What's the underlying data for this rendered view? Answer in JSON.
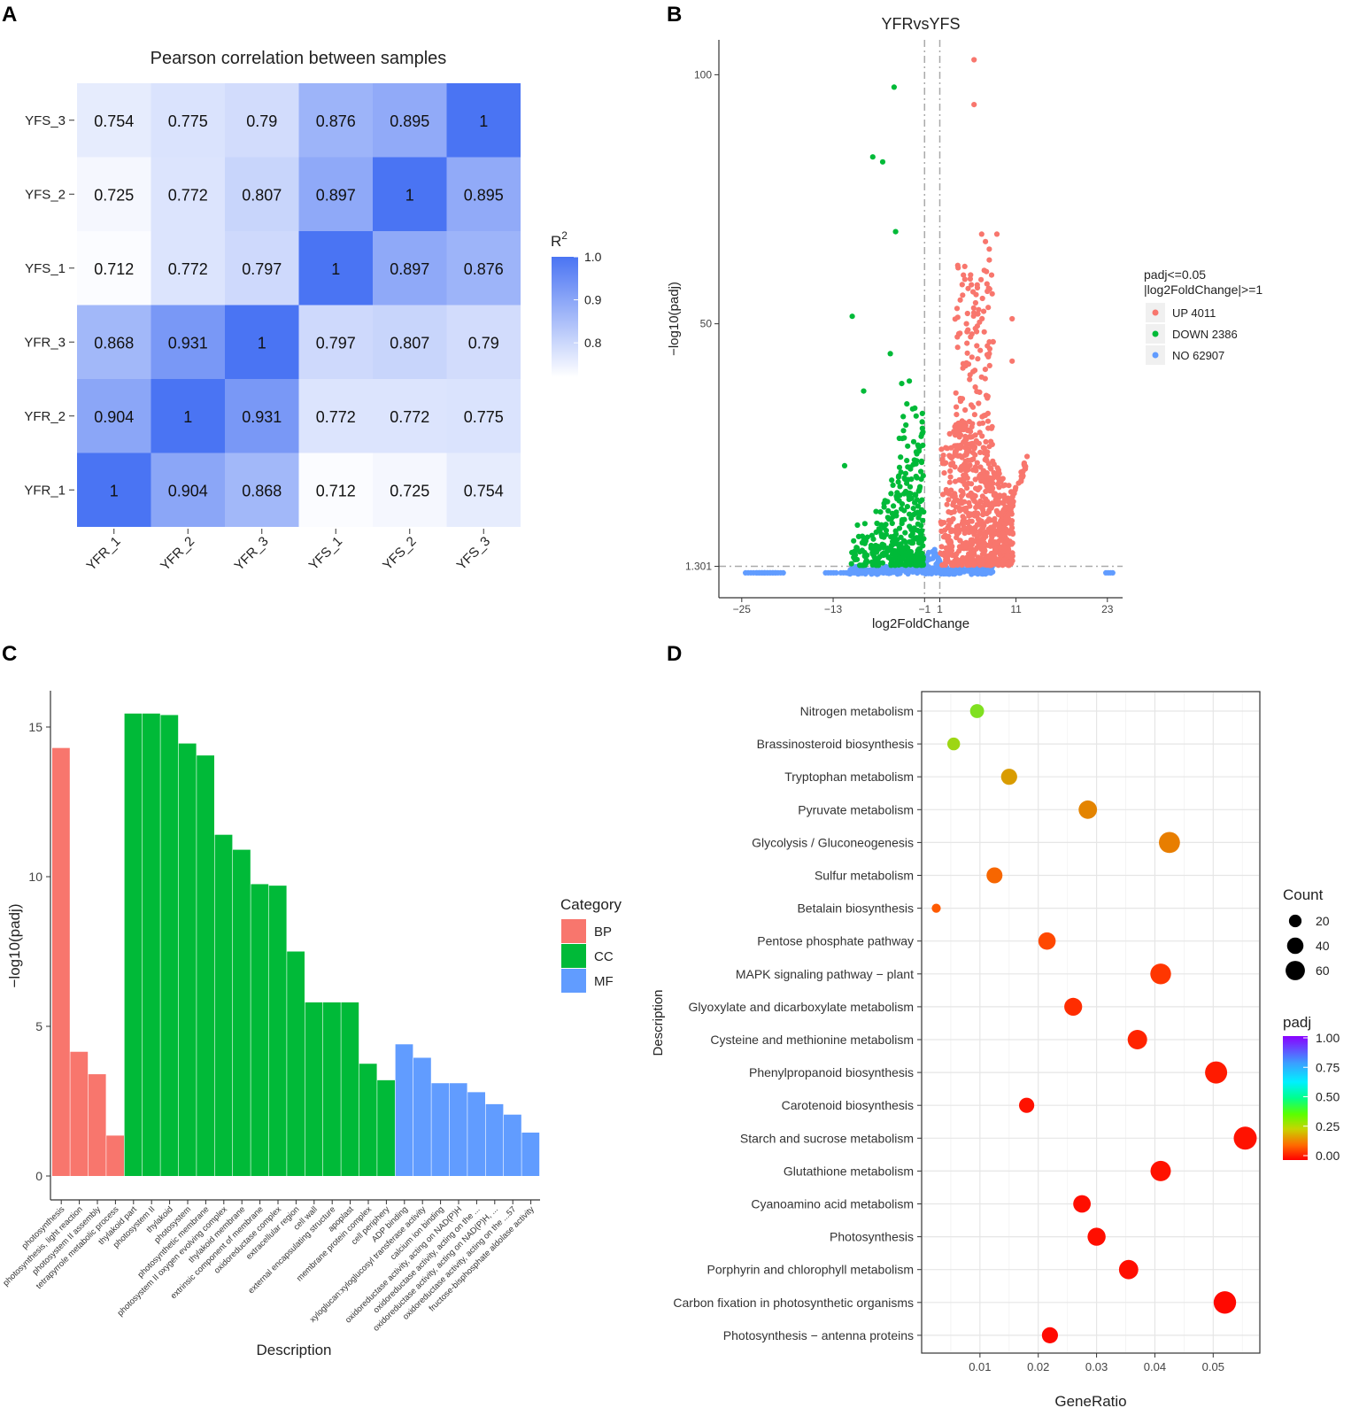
{
  "panels": {
    "a": "A",
    "b": "B",
    "c": "C",
    "d": "D"
  },
  "chart_data": [
    {
      "type": "heatmap",
      "title": "Pearson correlation between samples",
      "rows": [
        "YFS_3",
        "YFS_2",
        "YFS_1",
        "YFR_3",
        "YFR_2",
        "YFR_1"
      ],
      "columns": [
        "YFR_1",
        "YFR_2",
        "YFR_3",
        "YFS_1",
        "YFS_2",
        "YFS_3"
      ],
      "values": [
        [
          "0.754",
          "0.775",
          "0.79",
          "0.876",
          "0.895",
          "1"
        ],
        [
          "0.725",
          "0.772",
          "0.807",
          "0.897",
          "1",
          "0.895"
        ],
        [
          "0.712",
          "0.772",
          "0.797",
          "1",
          "0.897",
          "0.876"
        ],
        [
          "0.868",
          "0.931",
          "1",
          "0.797",
          "0.807",
          "0.79"
        ],
        [
          "0.904",
          "1",
          "0.931",
          "0.772",
          "0.772",
          "0.775"
        ],
        [
          "1",
          "0.904",
          "0.868",
          "0.712",
          "0.725",
          "0.754"
        ]
      ],
      "legend": {
        "title": "R",
        "superscript": "2",
        "ticks": [
          "1.0",
          "0.9",
          "0.8"
        ],
        "range": [
          0.7,
          1.0
        ],
        "low_color": "#ffffff",
        "high_color": "#4A74F3"
      }
    },
    {
      "type": "scatter",
      "title": "YFRvsYFS",
      "xlabel": "log2FoldChange",
      "ylabel": "−log10(padj)",
      "xticks": [
        "−25",
        "−13",
        "−1",
        "1",
        "11",
        "23"
      ],
      "xtick_values": [
        -25,
        -13,
        -1,
        1,
        11,
        23
      ],
      "yticks": [
        "1.301",
        "50",
        "100"
      ],
      "ytick_values": [
        1.301,
        50,
        100
      ],
      "xlim": [
        -28,
        25
      ],
      "ylim": [
        -5,
        107
      ],
      "thresholds": {
        "x": [
          -1,
          1
        ],
        "y": 1.301
      },
      "legend_title": [
        "padj<=0.05",
        "|log2FoldChange|>=1"
      ],
      "groups": [
        {
          "label": "UP 4011",
          "color": "#F8766D"
        },
        {
          "label": "DOWN 2386",
          "color": "#00BA38"
        },
        {
          "label": "NO 62907",
          "color": "#619CFF"
        }
      ],
      "highlighted_points": {
        "down": [
          [
            -5,
            97.5
          ],
          [
            -7.8,
            83.5
          ],
          [
            -6.5,
            82.5
          ],
          [
            -4.8,
            68.5
          ],
          [
            -10.5,
            51.5
          ],
          [
            -5.5,
            44
          ],
          [
            -9,
            36.5
          ],
          [
            -4,
            38
          ],
          [
            -3,
            38.5
          ],
          [
            -11.5,
            21.5
          ]
        ],
        "up": [
          [
            5.5,
            103
          ],
          [
            5.5,
            94
          ],
          [
            6.5,
            68
          ],
          [
            8.5,
            68
          ],
          [
            7,
            66.5
          ],
          [
            7.5,
            65
          ],
          [
            5,
            59
          ],
          [
            4.5,
            50
          ],
          [
            10.5,
            51
          ],
          [
            10.5,
            42.5
          ],
          [
            7.5,
            44
          ],
          [
            3.5,
            48
          ]
        ]
      }
    },
    {
      "type": "bar",
      "xlabel": "Description",
      "ylabel": "−log10(padj)",
      "ylim": [
        0,
        16
      ],
      "yticks": [
        "0",
        "5",
        "10",
        "15"
      ],
      "ytick_values": [
        0,
        5,
        10,
        15
      ],
      "legend_title": "Category",
      "category_colors": {
        "BP": "#F8766D",
        "CC": "#00BA38",
        "MF": "#619CFF"
      },
      "legend_items": [
        "BP",
        "CC",
        "MF"
      ],
      "categories": [
        "photosynthesis",
        "photosynthesis, light reaction",
        "photosystem II assembly",
        "tetrapyrrole metabolic process",
        "thylakoid part",
        "photosystem II",
        "thylakoid",
        "photosystem",
        "photosynthetic membrane",
        "photosystem II oxygen evolving complex",
        "thylakoid membrane",
        "extrinsic component of membrane",
        "oxidoreductase complex",
        "extracellular region",
        "cell wall",
        "external encapsulating structure",
        "apoplast",
        "membrane protein complex",
        "cell periphery",
        "ADP binding",
        "xyloglucan:xyloglucosyl transferase activity",
        "calcium ion binding",
        "oxidoreductase activity, acting on NAD(P)H",
        "oxidoreductase activity, acting on the ...",
        "oxidoreductase activity, acting on NAD(P)H, ...",
        "oxidoreductase activity, acting on the ...57",
        "fructose-bisphosphate aldolase activity"
      ],
      "values": [
        14.3,
        4.15,
        3.4,
        1.35,
        15.45,
        15.45,
        15.4,
        14.45,
        14.05,
        11.4,
        10.9,
        9.75,
        9.7,
        7.5,
        5.8,
        5.8,
        5.8,
        3.75,
        3.2,
        4.4,
        3.95,
        3.1,
        3.1,
        2.8,
        2.4,
        2.05,
        1.45
      ],
      "groups": [
        "BP",
        "BP",
        "BP",
        "BP",
        "CC",
        "CC",
        "CC",
        "CC",
        "CC",
        "CC",
        "CC",
        "CC",
        "CC",
        "CC",
        "CC",
        "CC",
        "CC",
        "CC",
        "CC",
        "MF",
        "MF",
        "MF",
        "MF",
        "MF",
        "MF",
        "MF",
        "MF"
      ]
    },
    {
      "type": "scatter",
      "subtype": "dot_plot",
      "xlabel": "GeneRatio",
      "ylabel": "Description",
      "xlim": [
        0,
        0.058
      ],
      "xticks": [
        "0.01",
        "0.02",
        "0.03",
        "0.04",
        "0.05"
      ],
      "xtick_values": [
        0.01,
        0.02,
        0.03,
        0.04,
        0.05
      ],
      "size_legend": {
        "title": "Count",
        "items": [
          "20",
          "40",
          "60"
        ]
      },
      "color_legend": {
        "title": "padj",
        "ticks": [
          "1.00",
          "0.75",
          "0.50",
          "0.25",
          "0.00"
        ]
      },
      "categories": [
        "Nitrogen metabolism",
        "Brassinosteroid biosynthesis",
        "Tryptophan metabolism",
        "Pyruvate metabolism",
        "Glycolysis / Gluconeogenesis",
        "Sulfur metabolism",
        "Betalain biosynthesis",
        "Pentose phosphate pathway",
        "MAPK signaling pathway − plant",
        "Glyoxylate and dicarboxylate metabolism",
        "Cysteine and methionine metabolism",
        "Phenylpropanoid biosynthesis",
        "Carotenoid biosynthesis",
        "Starch and sucrose metabolism",
        "Glutathione metabolism",
        "Cyanoamino acid metabolism",
        "Photosynthesis",
        "Porphyrin and chlorophyll metabolism",
        "Carbon fixation in photosynthetic organisms",
        "Photosynthesis − antenna proteins"
      ],
      "gene_ratio": [
        0.0095,
        0.0055,
        0.015,
        0.0285,
        0.0425,
        0.0125,
        0.0025,
        0.0215,
        0.041,
        0.026,
        0.037,
        0.0505,
        0.018,
        0.0555,
        0.041,
        0.0275,
        0.03,
        0.0355,
        0.052,
        0.022
      ],
      "count": [
        13,
        10,
        20,
        28,
        40,
        19,
        3,
        24,
        38,
        26,
        33,
        45,
        17,
        50,
        37,
        25,
        27,
        32,
        47,
        20
      ],
      "padj": [
        0.3,
        0.28,
        0.2,
        0.17,
        0.16,
        0.12,
        0.1,
        0.08,
        0.06,
        0.05,
        0.04,
        0.03,
        0.02,
        0.02,
        0.02,
        0.015,
        0.015,
        0.015,
        0.01,
        0.01
      ]
    }
  ]
}
